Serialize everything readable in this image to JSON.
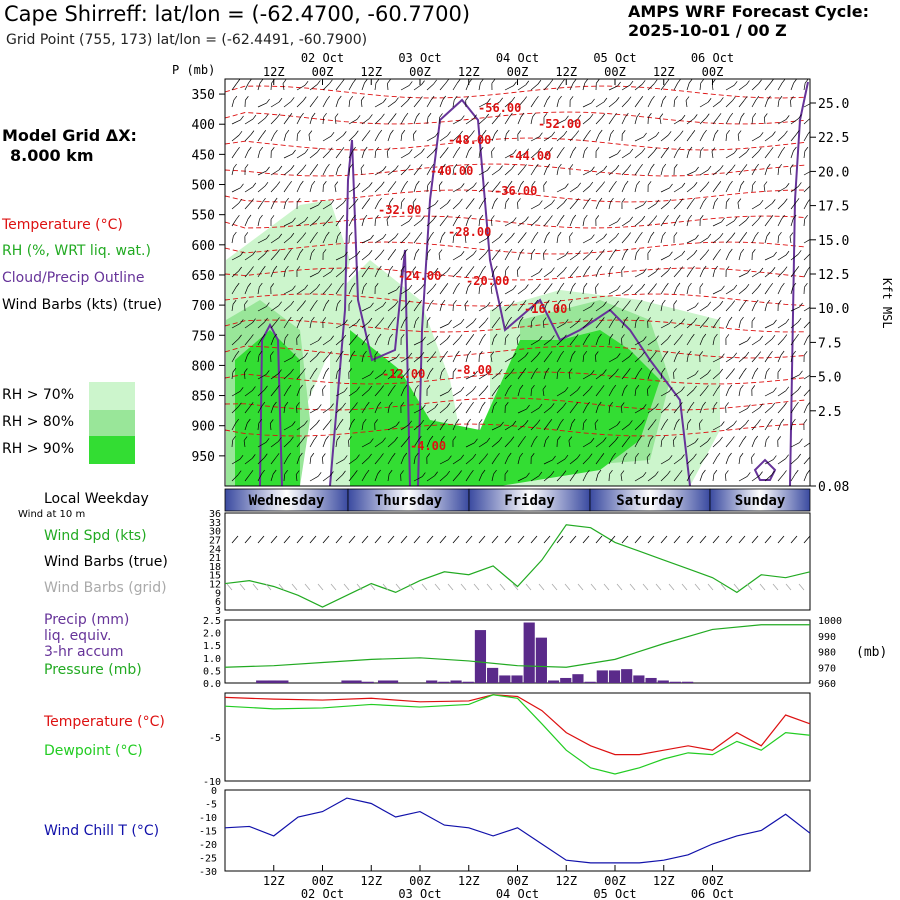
{
  "header": {
    "title": "Cape Shirreff:  lat/lon = (-62.4700, -60.7700)",
    "subtitle": "Grid Point (755, 173) lat/lon = (-62.4491, -60.7900)",
    "cycle_line1": "AMPS WRF Forecast Cycle:",
    "cycle_line2": "2025-10-01 / 00  Z"
  },
  "legend": {
    "grid_title": "Model Grid ΔX:",
    "grid_value": "8.000 km",
    "temperature": "Temperature (°C)",
    "rh": "RH (%, WRT liq. wat.)",
    "cloud": "Cloud/Precip Outline",
    "wind_barbs": "Wind Barbs (kts) (true)",
    "rh70": "RH > 70%",
    "rh80": "RH > 80%",
    "rh90": "RH > 90%",
    "local_weekday": "Local Weekday",
    "wind_at": "Wind at 10 m",
    "wind_spd": "Wind Spd (kts)",
    "wind_barbs_true": "Wind Barbs (true)",
    "wind_barbs_grid": "Wind Barbs (grid)",
    "precip1": "Precip (mm)",
    "precip2": "liq. equiv.",
    "precip3": "3-hr accum",
    "pressure": "Pressure (mb)",
    "pressure_unit": "(mb)",
    "temp2": "Temperature (°C)",
    "dewpoint": "Dewpoint (°C)",
    "windchill": "Wind Chill T (°C)",
    "p_axis": "P (mb)",
    "kft": "Kft MSL"
  },
  "colors": {
    "temperature": "#dd1111",
    "rh_text": "#22aa22",
    "cloud": "#663399",
    "rh70": "#ccf5cc",
    "rh80": "#99e699",
    "rh90": "#33dd33",
    "precip": "#5a2a8a",
    "pressure": "#22aa22",
    "dewpoint": "#22cc22",
    "windchill": "#1111aa",
    "grid_barbs": "#aaaaaa"
  },
  "time_axis": {
    "hour_labels": [
      "12Z",
      "00Z",
      "12Z",
      "00Z",
      "12Z",
      "00Z",
      "12Z",
      "00Z",
      "12Z",
      "00Z"
    ],
    "date_labels": [
      "02 Oct",
      "03 Oct",
      "04 Oct",
      "05 Oct",
      "06 Oct"
    ],
    "weekdays": [
      "Wednesday",
      "Thursday",
      "Friday",
      "Saturday",
      "Sunday"
    ]
  },
  "chart_data": [
    {
      "type": "heatmap",
      "title": "Cross-section",
      "p_levels": [
        350,
        400,
        450,
        500,
        550,
        600,
        650,
        700,
        750,
        800,
        850,
        900,
        950
      ],
      "kft_ticks": [
        "25.0",
        "22.5",
        "20.0",
        "17.5",
        "15.0",
        "12.5",
        "10.0",
        "7.5",
        "5.0",
        "2.5",
        "0.08"
      ],
      "temperature_labels": [
        "-56.00",
        "-52.00",
        "-48.00",
        "-44.00",
        "-40.00",
        "-36.00",
        "-32.00",
        "-28.00",
        "-24.00",
        "-20.00",
        "-16.00",
        "-12.00",
        "-8.00",
        "-4.00"
      ]
    },
    {
      "type": "line",
      "title": "Wind Spd (kts)",
      "y_ticks": [
        36,
        33,
        30,
        27,
        24,
        21,
        18,
        15,
        12,
        9,
        6,
        3
      ],
      "ylim": [
        3,
        36
      ],
      "x_hours": [
        0,
        6,
        12,
        18,
        24,
        30,
        36,
        42,
        48,
        54,
        60,
        66,
        72,
        78,
        84,
        90,
        96,
        102,
        108,
        114,
        120,
        126,
        132,
        138,
        144
      ],
      "values": [
        12,
        13,
        11,
        8,
        4,
        8,
        12,
        9,
        13,
        16,
        15,
        18,
        11,
        20,
        32,
        31,
        26,
        23,
        20,
        17,
        14,
        9,
        15,
        14,
        16
      ]
    },
    {
      "type": "bar",
      "title": "Precip (mm)",
      "y_ticks": [
        "2.5",
        "2.0",
        "1.5",
        "1.0",
        "0.5",
        "0.0"
      ],
      "ylim": [
        0,
        2.5
      ],
      "x_hours": [
        51,
        54,
        57,
        60,
        63,
        66,
        69,
        72,
        75,
        78,
        81,
        84,
        87,
        90,
        93,
        96,
        99,
        102,
        105,
        108,
        111,
        114,
        117,
        120,
        123
      ],
      "values": [
        0.1,
        0.05,
        0.1,
        0.05,
        2.1,
        0.6,
        0.3,
        0.3,
        2.4,
        1.8,
        0.1,
        0.2,
        0.35,
        0.05,
        0.5,
        0.5,
        0.55,
        0.3,
        0.2,
        0.1,
        0.05,
        0.05,
        0,
        0,
        0
      ],
      "early_x_hours": [
        3,
        6,
        24,
        27,
        33
      ],
      "early_values": [
        0.1,
        0.1,
        0.1,
        0.05,
        0.1
      ]
    },
    {
      "type": "line",
      "title": "Pressure (mb)",
      "y_ticks": [
        1000,
        990,
        980,
        970,
        960
      ],
      "ylim": [
        960,
        1000
      ],
      "x_hours": [
        0,
        12,
        24,
        36,
        48,
        60,
        72,
        84,
        96,
        108,
        120,
        132,
        144
      ],
      "values": [
        970,
        971,
        973,
        975,
        976,
        974,
        971,
        970,
        975,
        985,
        994,
        997,
        997
      ]
    },
    {
      "type": "line",
      "title": "Temperature / Dewpoint",
      "y_ticks": [
        "-5",
        "-10"
      ],
      "ylim": [
        -10,
        0
      ],
      "x_hours": [
        0,
        12,
        24,
        36,
        48,
        60,
        66,
        72,
        78,
        84,
        90,
        96,
        102,
        108,
        114,
        120,
        126,
        132,
        138,
        144
      ],
      "temperature": [
        -0.5,
        -0.7,
        -0.8,
        -0.6,
        -1.0,
        -0.9,
        -0.2,
        -0.4,
        -2.0,
        -4.5,
        -6.0,
        -7.0,
        -7.0,
        -6.5,
        -6.0,
        -6.5,
        -4.5,
        -6.0,
        -2.5,
        -3.5
      ],
      "dewpoint": [
        -1.5,
        -1.8,
        -1.7,
        -1.3,
        -1.6,
        -1.3,
        -0.2,
        -0.6,
        -3.5,
        -6.5,
        -8.5,
        -9.2,
        -8.5,
        -7.5,
        -6.8,
        -7.0,
        -5.5,
        -6.5,
        -4.5,
        -4.8
      ]
    },
    {
      "type": "line",
      "title": "Wind Chill T (°C)",
      "y_ticks": [
        "0",
        "-5",
        "-10",
        "-15",
        "-20",
        "-25",
        "-30"
      ],
      "ylim": [
        -30,
        0
      ],
      "x_hours": [
        0,
        6,
        12,
        18,
        24,
        30,
        36,
        42,
        48,
        54,
        60,
        66,
        72,
        78,
        84,
        90,
        96,
        102,
        108,
        114,
        120,
        126,
        132,
        138,
        144
      ],
      "values": [
        -14,
        -13.5,
        -17,
        -10,
        -8,
        -3,
        -5,
        -10,
        -8,
        -13,
        -14,
        -17,
        -14,
        -20,
        -26,
        -27,
        -27,
        -27,
        -26,
        -24,
        -20,
        -17,
        -15,
        -9,
        -16
      ]
    }
  ]
}
